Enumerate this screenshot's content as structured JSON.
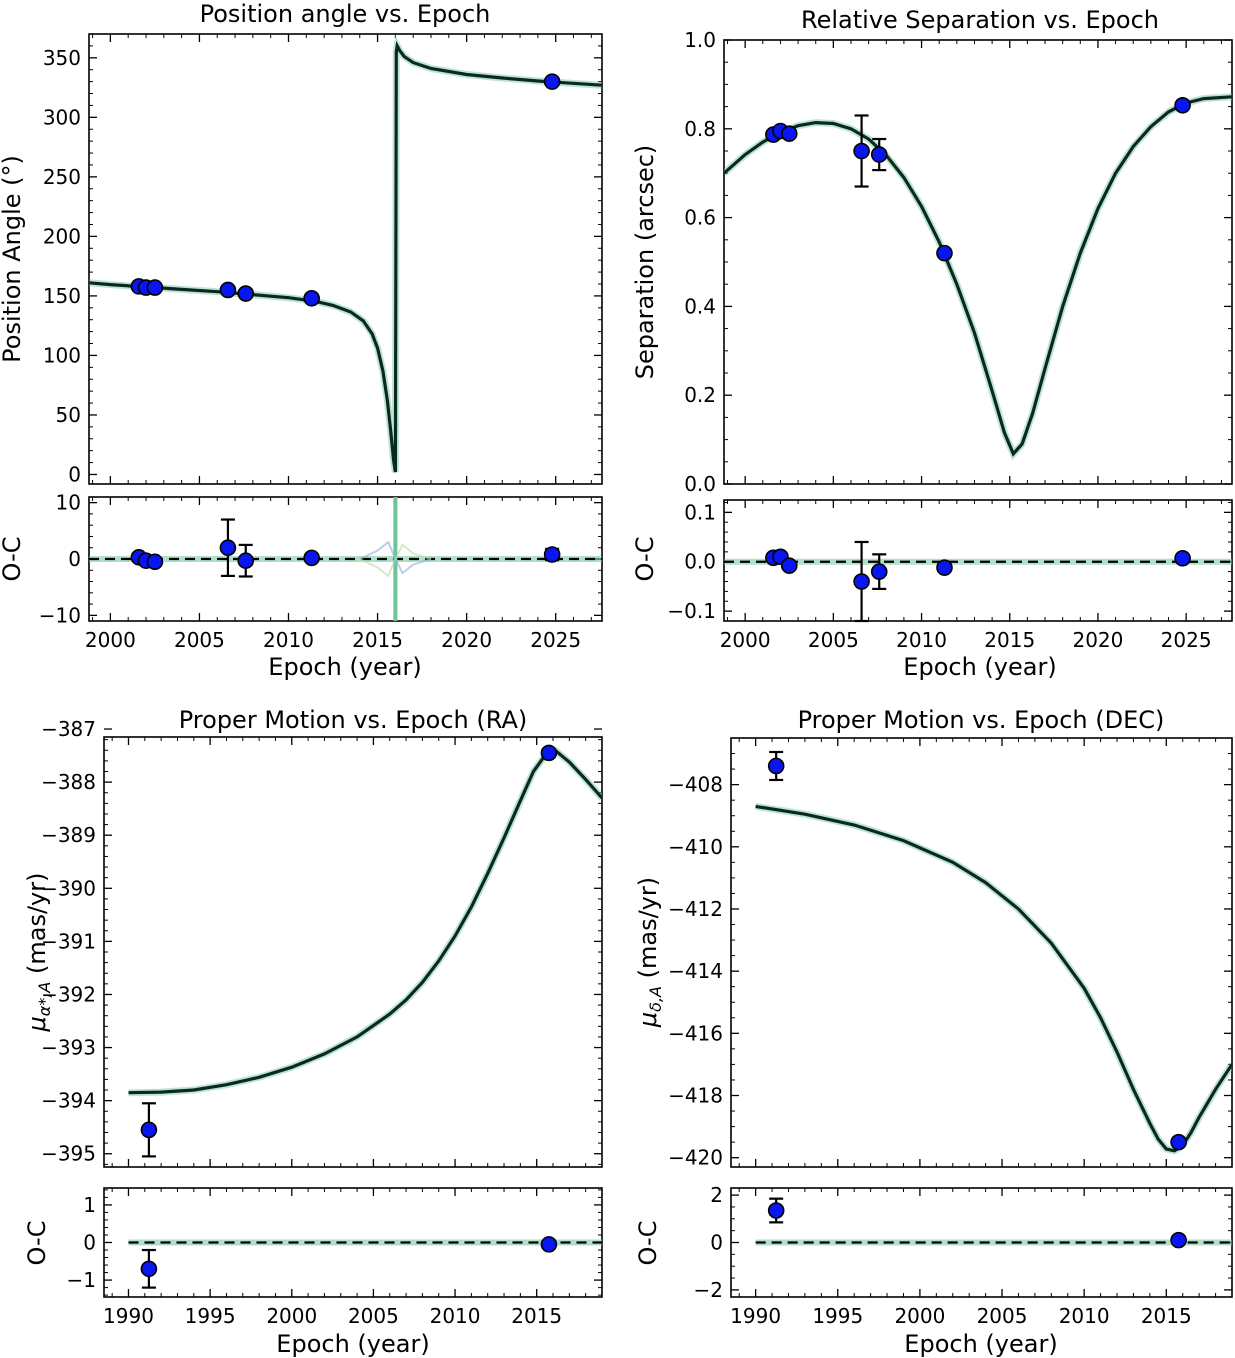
{
  "chart_data": [
    {
      "type": "line",
      "title": "Position angle vs. Epoch",
      "xlabel": "Epoch (year)",
      "ylabel": "Position Angle (°)",
      "residual_label": "O-C",
      "xlim": [
        1998.8,
        2027.6
      ],
      "ylim": [
        -8,
        370
      ],
      "rlim": [
        -11,
        11
      ],
      "xticks": [
        2000,
        2005,
        2010,
        2015,
        2020,
        2025
      ],
      "yticks": [
        0,
        50,
        100,
        150,
        200,
        250,
        300,
        350
      ],
      "rticks": [
        -10,
        0,
        10
      ],
      "xtick_labels": [
        "2000",
        "2005",
        "2010",
        "2015",
        "2020",
        "2025"
      ],
      "ytick_labels": [
        "0",
        "50",
        "100",
        "150",
        "200",
        "250",
        "300",
        "350"
      ],
      "rtick_labels": [
        "−10",
        "0",
        "10"
      ],
      "model": {
        "x": [
          1998.8,
          2000,
          2002,
          2004,
          2006,
          2008,
          2010,
          2011.5,
          2012.5,
          2013.5,
          2014.2,
          2014.7,
          2015.0,
          2015.3,
          2015.55,
          2015.75,
          2015.9,
          2016.0,
          2016.05,
          2016.1,
          2016.25,
          2016.5,
          2017,
          2018,
          2020,
          2022,
          2024,
          2025,
          2027.6
        ],
        "y": [
          161,
          159.5,
          157.5,
          155.5,
          153.5,
          151,
          148.5,
          145.5,
          142,
          136.5,
          129,
          118,
          106,
          87,
          62,
          35,
          12,
          2,
          355,
          360,
          356,
          351,
          346,
          341,
          336,
          333,
          330.5,
          329.5,
          327
        ]
      },
      "points": [
        {
          "x": 2001.6,
          "y": 158,
          "yerr": 2,
          "res": 0.3,
          "rerr": 0.3
        },
        {
          "x": 2002.0,
          "y": 157,
          "yerr": 2,
          "res": -0.3,
          "rerr": 0.3
        },
        {
          "x": 2002.5,
          "y": 157,
          "yerr": 2,
          "res": -0.5,
          "rerr": 0.3
        },
        {
          "x": 2006.6,
          "y": 155,
          "yerr": 5,
          "res": 2.0,
          "rerr": 5.0
        },
        {
          "x": 2007.6,
          "y": 152,
          "yerr": 3,
          "res": -0.3,
          "rerr": 2.8
        },
        {
          "x": 2011.3,
          "y": 148,
          "yerr": 2,
          "res": 0.2,
          "rerr": 0.3
        },
        {
          "x": 2024.8,
          "y": 330,
          "yerr": 2,
          "res": 0.8,
          "rerr": 1.0
        }
      ]
    },
    {
      "type": "line",
      "title": "Relative Separation vs. Epoch",
      "xlabel": "Epoch (year)",
      "ylabel": "Separation (arcsec)",
      "residual_label": "O-C",
      "xlim": [
        1998.8,
        2027.6
      ],
      "ylim": [
        0.0,
        1.0
      ],
      "rlim": [
        -0.12,
        0.125
      ],
      "xticks": [
        2000,
        2005,
        2010,
        2015,
        2020,
        2025
      ],
      "yticks": [
        0.0,
        0.2,
        0.4,
        0.6,
        0.8,
        1.0
      ],
      "rticks": [
        -0.1,
        0.0,
        0.1
      ],
      "xtick_labels": [
        "2000",
        "2005",
        "2010",
        "2015",
        "2020",
        "2025"
      ],
      "ytick_labels": [
        "0.0",
        "0.2",
        "0.4",
        "0.6",
        "0.8",
        "1.0"
      ],
      "rtick_labels": [
        "−0.1",
        "0.0",
        "0.1"
      ],
      "model": {
        "x": [
          1998.8,
          2000,
          2001,
          2002,
          2003,
          2004,
          2005,
          2006,
          2007,
          2008,
          2009,
          2010,
          2011,
          2012,
          2013,
          2014,
          2014.7,
          2015.2,
          2015.7,
          2016.3,
          2017,
          2018,
          2019,
          2020,
          2021,
          2022,
          2023,
          2024,
          2025,
          2026,
          2027.6
        ],
        "y": [
          0.7,
          0.742,
          0.77,
          0.792,
          0.807,
          0.814,
          0.812,
          0.8,
          0.777,
          0.74,
          0.69,
          0.625,
          0.545,
          0.45,
          0.34,
          0.21,
          0.115,
          0.068,
          0.09,
          0.16,
          0.26,
          0.4,
          0.52,
          0.62,
          0.7,
          0.76,
          0.805,
          0.838,
          0.858,
          0.868,
          0.872
        ]
      },
      "points": [
        {
          "x": 2001.6,
          "y": 0.787,
          "yerr": 0.01,
          "res": 0.008,
          "rerr": 0.005
        },
        {
          "x": 2002.0,
          "y": 0.795,
          "yerr": 0.01,
          "res": 0.01,
          "rerr": 0.005
        },
        {
          "x": 2002.5,
          "y": 0.789,
          "yerr": 0.01,
          "res": -0.008,
          "rerr": 0.005
        },
        {
          "x": 2006.6,
          "y": 0.75,
          "yerr": 0.08,
          "res": -0.04,
          "rerr": 0.08
        },
        {
          "x": 2007.6,
          "y": 0.742,
          "yerr": 0.035,
          "res": -0.02,
          "rerr": 0.035
        },
        {
          "x": 2011.3,
          "y": 0.52,
          "yerr": 0.01,
          "res": -0.012,
          "rerr": 0.005
        },
        {
          "x": 2024.8,
          "y": 0.853,
          "yerr": 0.01,
          "res": 0.007,
          "rerr": 0.005
        }
      ]
    },
    {
      "type": "line",
      "title": "Proper Motion vs. Epoch (RA)",
      "xlabel": "Epoch (year)",
      "ylabel_main": "μ",
      "ylabel_sub": "α*,A",
      "ylabel_unit": " (mas/yr)",
      "residual_label": "O-C",
      "xlim": [
        1988.5,
        2019.0
      ],
      "ylim": [
        -395.25,
        -387.15
      ],
      "rlim": [
        -1.45,
        1.45
      ],
      "xticks": [
        1990,
        1995,
        2000,
        2005,
        2010,
        2015
      ],
      "yticks": [
        -395,
        -394,
        -393,
        -392,
        -391,
        -390,
        -389,
        -388,
        -387
      ],
      "rticks": [
        -1,
        0,
        1
      ],
      "xtick_labels": [
        "1990",
        "1995",
        "2000",
        "2005",
        "2010",
        "2015"
      ],
      "ytick_labels": [
        "−395",
        "−394",
        "−393",
        "−392",
        "−391",
        "−390",
        "−389",
        "−388",
        "−387"
      ],
      "rtick_labels": [
        "−1",
        "0",
        "1"
      ],
      "model": {
        "x": [
          1990,
          1992,
          1994,
          1996,
          1998,
          2000,
          2002,
          2004,
          2006,
          2007,
          2008,
          2009,
          2010,
          2011,
          2012,
          2013,
          2014,
          2014.8,
          2015.5,
          2016.2,
          2017,
          2018,
          2019.0
        ],
        "y": [
          -393.85,
          -393.84,
          -393.8,
          -393.7,
          -393.56,
          -393.37,
          -393.12,
          -392.8,
          -392.37,
          -392.1,
          -391.77,
          -391.37,
          -390.9,
          -390.35,
          -389.72,
          -389.05,
          -388.35,
          -387.8,
          -387.5,
          -387.42,
          -387.62,
          -387.95,
          -388.3
        ]
      },
      "points": [
        {
          "x": 1991.25,
          "y": -394.55,
          "yerr": 0.5,
          "res": -0.7,
          "rerr": 0.5
        },
        {
          "x": 2015.75,
          "y": -387.45,
          "yerr": 0.06,
          "res": -0.05,
          "rerr": 0.06
        }
      ]
    },
    {
      "type": "line",
      "title": "Proper Motion vs. Epoch (DEC)",
      "xlabel": "Epoch (year)",
      "ylabel_main": "μ",
      "ylabel_sub": "δ,A",
      "ylabel_unit": " (mas/yr)",
      "residual_label": "O-C",
      "xlim": [
        1988.5,
        2019.0
      ],
      "ylim": [
        -420.3,
        -406.5
      ],
      "rlim": [
        -2.3,
        2.3
      ],
      "xticks": [
        1990,
        1995,
        2000,
        2005,
        2010,
        2015
      ],
      "yticks": [
        -420,
        -418,
        -416,
        -414,
        -412,
        -410,
        -408
      ],
      "rticks": [
        -2,
        0,
        2
      ],
      "xtick_labels": [
        "1990",
        "1995",
        "2000",
        "2005",
        "2010",
        "2015"
      ],
      "ytick_labels": [
        "−420",
        "−418",
        "−416",
        "−414",
        "−412",
        "−410",
        "−408"
      ],
      "rtick_labels": [
        "−2",
        "0",
        "2"
      ],
      "model": {
        "x": [
          1990,
          1993,
          1996,
          1999,
          2002,
          2004,
          2006,
          2008,
          2010,
          2011,
          2012,
          2013,
          2014,
          2014.5,
          2015.0,
          2015.5,
          2016.0,
          2016.5,
          2017,
          2018,
          2019.0
        ],
        "y": [
          -408.7,
          -408.95,
          -409.3,
          -409.8,
          -410.5,
          -411.15,
          -412.0,
          -413.1,
          -414.55,
          -415.5,
          -416.6,
          -417.8,
          -418.9,
          -419.4,
          -419.72,
          -419.78,
          -419.6,
          -419.2,
          -418.7,
          -417.8,
          -417.0
        ]
      },
      "points": [
        {
          "x": 1991.25,
          "y": -407.4,
          "yerr": 0.45,
          "res": 1.35,
          "rerr": 0.5
        },
        {
          "x": 2015.75,
          "y": -419.5,
          "yerr": 0.08,
          "res": 0.1,
          "rerr": 0.1
        }
      ]
    }
  ]
}
